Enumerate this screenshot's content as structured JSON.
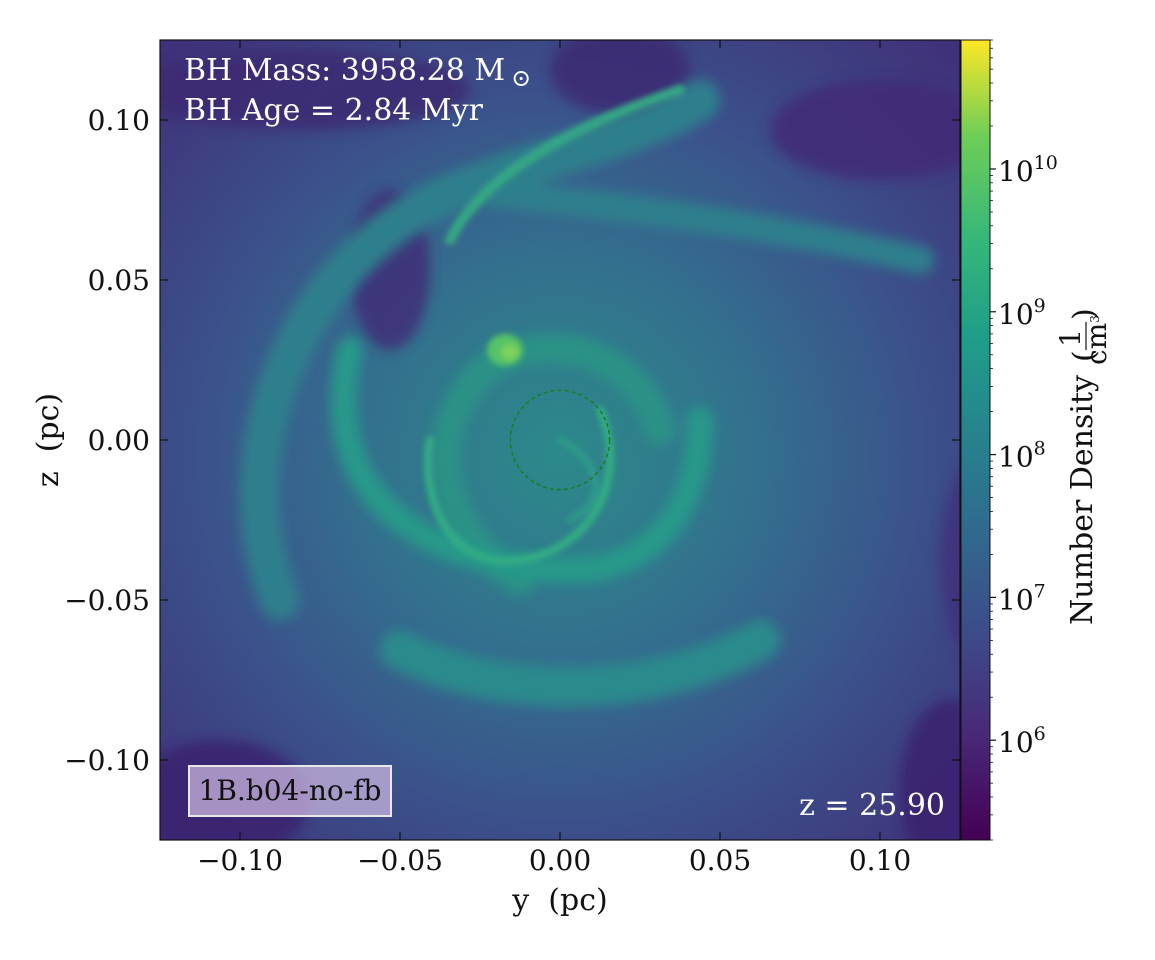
{
  "chart_data": {
    "type": "heatmap",
    "title": "",
    "xlabel": "y  (pc)",
    "ylabel": "z  (pc)",
    "xlim": [
      -0.125,
      0.125
    ],
    "ylim": [
      -0.125,
      0.125
    ],
    "x_ticks": [
      -0.1,
      -0.05,
      0.0,
      0.05,
      0.1
    ],
    "x_tick_labels": [
      "−0.10",
      "−0.05",
      "0.00",
      "0.05",
      "0.10"
    ],
    "y_ticks": [
      -0.1,
      -0.05,
      0.0,
      0.05,
      0.1
    ],
    "y_tick_labels": [
      "−0.10",
      "−0.05",
      "0.00",
      "0.05",
      "0.10"
    ],
    "colormap": "viridis",
    "colorbar": {
      "label": "Number Density",
      "unit_numerator": "1",
      "unit_denominator": "cm",
      "unit_denominator_exp": "3",
      "scale": "log",
      "range": [
        200000,
        80000000000
      ],
      "ticks": [
        {
          "value": 1000000,
          "base": "10",
          "exp": "6"
        },
        {
          "value": 10000000,
          "base": "10",
          "exp": "7"
        },
        {
          "value": 100000000,
          "base": "10",
          "exp": "8"
        },
        {
          "value": 1000000000,
          "base": "10",
          "exp": "9"
        },
        {
          "value": 10000000000,
          "base": "10",
          "exp": "10"
        }
      ]
    },
    "annotations": {
      "bh_mass": "BH Mass: 3958.28 M",
      "bh_mass_symbol": "⊙",
      "bh_age": "BH Age = 2.84 Myr",
      "redshift": "z = 25.90",
      "run_label": "1B.b04-no-fb"
    },
    "circle": {
      "center": [
        0.0,
        0.0
      ],
      "radius": 0.0155,
      "color": "#1e7a1e",
      "style": "dashed"
    },
    "colors": {
      "background_low": "#3e2a72",
      "field_mid": "#3b5d8f",
      "arm": "#2aa484",
      "clump": "#7cd25b"
    }
  }
}
